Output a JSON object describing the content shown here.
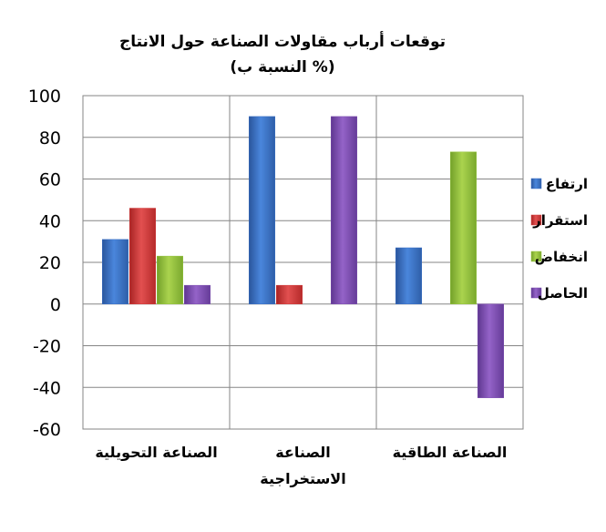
{
  "chart_data": {
    "type": "bar",
    "title": [
      "توقعات أرباب مقاولات الصناعة حول الانتاج",
      "(النسبة ب %)"
    ],
    "categories": [
      [
        "الصناعة التحويلية"
      ],
      [
        "الصناعة",
        "الاستخراجية"
      ],
      [
        "الصناعة الطاقية"
      ]
    ],
    "series": [
      {
        "name": "ارتفاع",
        "color": "#3a6fc4",
        "values": [
          31,
          90,
          27
        ]
      },
      {
        "name": "استقرار",
        "color": "#d23a3a",
        "values": [
          46,
          9,
          0
        ]
      },
      {
        "name": "انخفاض",
        "color": "#93c33c",
        "values": [
          23,
          0,
          73
        ]
      },
      {
        "name": "الحاصل",
        "color": "#7d4fb0",
        "values": [
          9,
          90,
          -45
        ]
      }
    ],
    "ylim": [
      -60,
      100
    ],
    "yticks": [
      100,
      80,
      60,
      40,
      20,
      0,
      -20,
      -40,
      -60
    ],
    "legend_position": "right",
    "grid": true
  }
}
